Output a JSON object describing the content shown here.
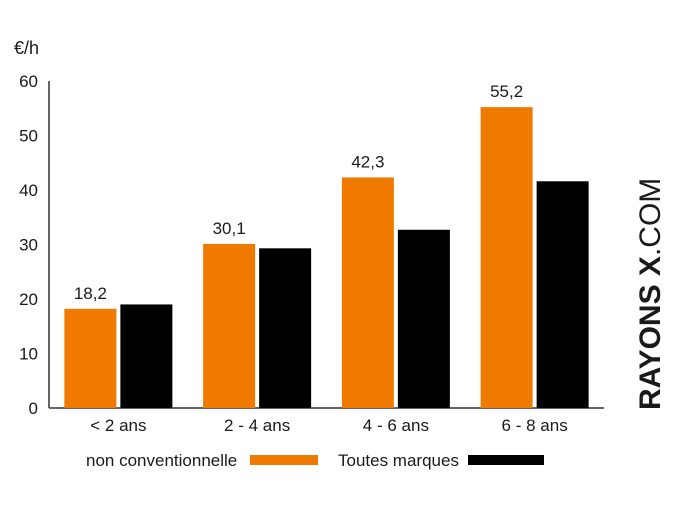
{
  "unit_label": "€/h",
  "watermark": {
    "main": "RAYONS X",
    "sub": ".COM"
  },
  "colors": {
    "series_1": "#f07a00",
    "series_2": "#000000",
    "axis": "#333333"
  },
  "chart_data": {
    "type": "bar",
    "title": "",
    "xlabel": "",
    "ylabel": "€/h",
    "ylim": [
      0,
      60
    ],
    "yticks": [
      0,
      10,
      20,
      30,
      40,
      50,
      60
    ],
    "grid": false,
    "legend_position": "bottom",
    "categories": [
      "< 2 ans",
      "2 - 4 ans",
      "4 - 6 ans",
      "6 - 8 ans"
    ],
    "series": [
      {
        "name": "non conventionnelle",
        "color": "#f07a00",
        "values": [
          18.2,
          30.1,
          42.3,
          55.2
        ],
        "labels": [
          "18,2",
          "30,1",
          "42,3",
          "55,2"
        ]
      },
      {
        "name": "Toutes marques",
        "color": "#000000",
        "values": [
          19.0,
          29.3,
          32.7,
          41.6
        ]
      }
    ]
  }
}
